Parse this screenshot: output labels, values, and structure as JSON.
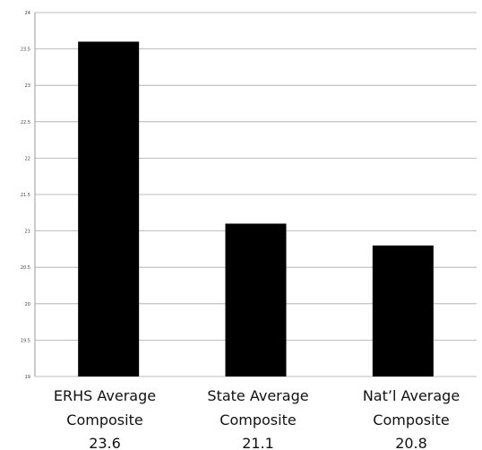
{
  "chart_data": {
    "type": "bar",
    "title": "",
    "xlabel": "",
    "ylabel": "",
    "ylim": [
      19,
      24
    ],
    "y_ticks": [
      19,
      19.5,
      20,
      20.5,
      21,
      21.5,
      22,
      22.5,
      23,
      23.5,
      24
    ],
    "grid": true,
    "bar_color": "#000000",
    "categories": [
      {
        "line1": "ERHS Average",
        "line2": "Composite",
        "value_label": "23.6"
      },
      {
        "line1": "State Average",
        "line2": "Composite",
        "value_label": "21.1"
      },
      {
        "line1": "Nat’l Average",
        "line2": "Composite",
        "value_label": "20.8"
      }
    ],
    "values": [
      23.6,
      21.1,
      20.8
    ]
  }
}
